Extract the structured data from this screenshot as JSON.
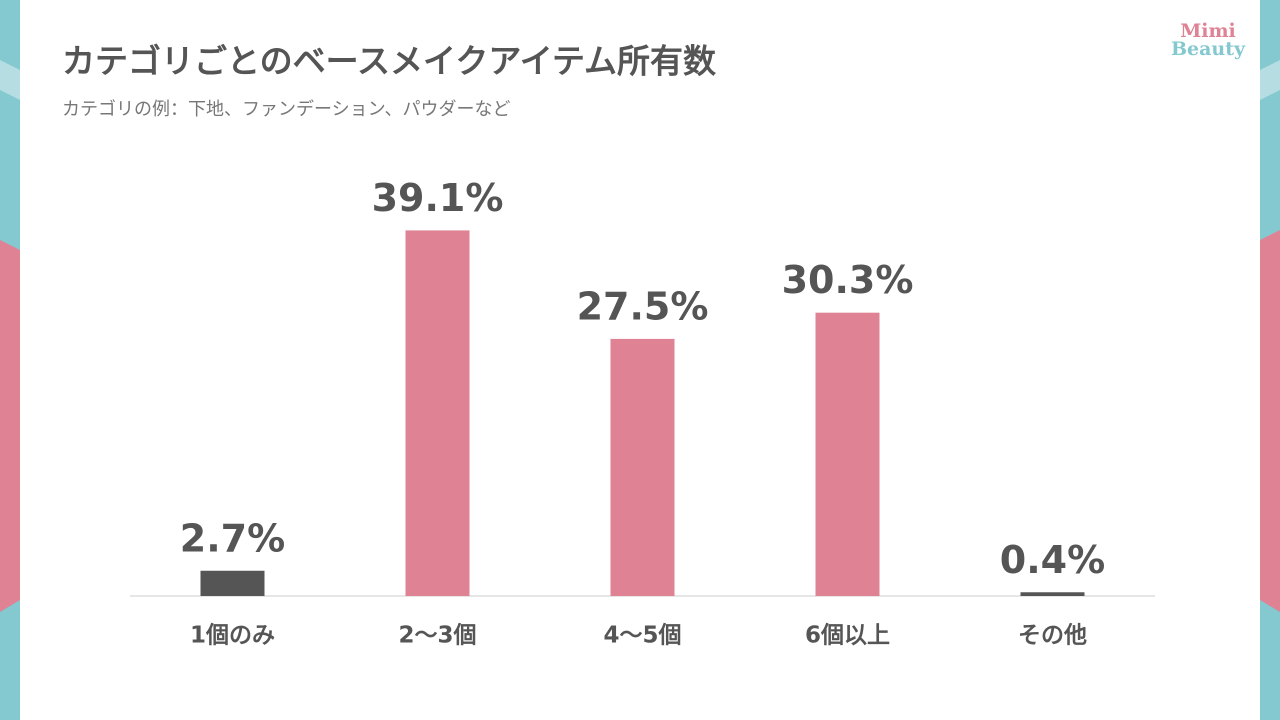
{
  "chart_data": {
    "type": "bar",
    "title": "カテゴリごとのベースメイクアイテム所有数",
    "subtitle": "カテゴリの例：下地、ファンデーション、パウダーなど",
    "logo": [
      "Mimi",
      "Beauty"
    ],
    "categories": [
      "1個のみ",
      "2〜3個",
      "4〜5個",
      "6個以上",
      "その他"
    ],
    "values": [
      2.7,
      39.1,
      27.5,
      30.3,
      0.4
    ],
    "value_labels": [
      "2.7%",
      "39.1%",
      "27.5%",
      "30.3%",
      "0.4%"
    ],
    "colors": [
      "#555555",
      "#df8294",
      "#df8294",
      "#df8294",
      "#555555"
    ],
    "ylim": [
      0,
      40
    ]
  }
}
